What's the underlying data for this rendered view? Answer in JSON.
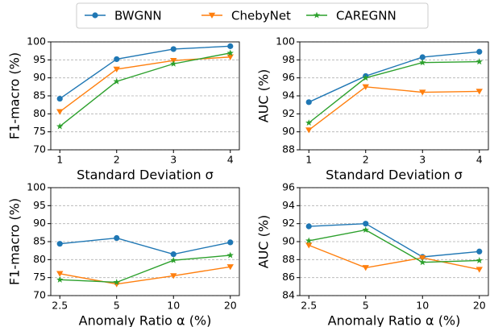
{
  "chart_data": [
    {
      "type": "line",
      "xlabel": "Standard Deviation σ",
      "ylabel": "F1-macro (%)",
      "categories": [
        "1",
        "2",
        "3",
        "4"
      ],
      "ylim": [
        70,
        100
      ],
      "yticks": [
        70,
        75,
        80,
        85,
        90,
        95,
        100
      ],
      "grid": true,
      "series": [
        {
          "name": "BWGNN",
          "color": "#1f77b4",
          "values": [
            84.2,
            95.2,
            98.0,
            98.8
          ]
        },
        {
          "name": "ChebyNet",
          "color": "#ff7f0e",
          "values": [
            80.6,
            92.4,
            94.8,
            95.8
          ]
        },
        {
          "name": "CAREGNN",
          "color": "#2ca02c",
          "values": [
            76.5,
            89.0,
            93.9,
            96.9
          ]
        }
      ]
    },
    {
      "type": "line",
      "xlabel": "Standard Deviation σ",
      "ylabel": "AUC (%)",
      "categories": [
        "1",
        "2",
        "3",
        "4"
      ],
      "ylim": [
        88,
        100
      ],
      "yticks": [
        88,
        90,
        92,
        94,
        96,
        98,
        100
      ],
      "grid": true,
      "series": [
        {
          "color": "#1f77b4",
          "values": [
            93.3,
            96.2,
            98.3,
            98.9
          ]
        },
        {
          "color": "#ff7f0e",
          "values": [
            90.2,
            95.0,
            94.4,
            94.5
          ]
        },
        {
          "color": "#2ca02c",
          "values": [
            91.0,
            96.0,
            97.7,
            97.8
          ]
        }
      ]
    },
    {
      "type": "line",
      "xlabel": "Anomaly Ratio α (%)",
      "ylabel": "F1-macro (%)",
      "categories": [
        "2.5",
        "5",
        "10",
        "20"
      ],
      "ylim": [
        70,
        100
      ],
      "yticks": [
        70,
        75,
        80,
        85,
        90,
        95,
        100
      ],
      "grid": true,
      "series": [
        {
          "color": "#1f77b4",
          "values": [
            84.4,
            86.0,
            81.5,
            84.8
          ]
        },
        {
          "color": "#ff7f0e",
          "values": [
            76.1,
            73.2,
            75.5,
            78.0
          ]
        },
        {
          "color": "#2ca02c",
          "values": [
            74.4,
            73.7,
            79.8,
            81.2
          ]
        }
      ]
    },
    {
      "type": "line",
      "xlabel": "Anomaly Ratio α (%)",
      "ylabel": "AUC (%)",
      "categories": [
        "2.5",
        "5",
        "10",
        "20"
      ],
      "ylim": [
        84,
        96
      ],
      "yticks": [
        84,
        86,
        88,
        90,
        92,
        94,
        96
      ],
      "grid": true,
      "series": [
        {
          "color": "#1f77b4",
          "values": [
            91.7,
            92.0,
            88.3,
            88.9
          ]
        },
        {
          "color": "#ff7f0e",
          "values": [
            89.6,
            87.1,
            88.2,
            86.9
          ]
        },
        {
          "color": "#2ca02c",
          "values": [
            90.1,
            91.3,
            87.7,
            87.9
          ]
        }
      ]
    }
  ]
}
